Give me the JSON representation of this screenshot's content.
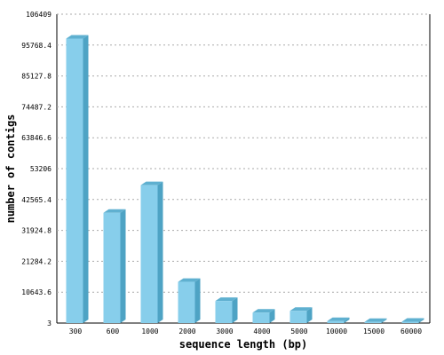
{
  "chart_data": {
    "type": "bar",
    "title": "",
    "xlabel": "sequence length (bp)",
    "ylabel": "number of contigs",
    "categories": [
      "300",
      "600",
      "1000",
      "2000",
      "3000",
      "4000",
      "5000",
      "10000",
      "15000",
      "60000"
    ],
    "values": [
      98000,
      38000,
      47500,
      14200,
      7600,
      3600,
      4200,
      700,
      400,
      450
    ],
    "yticks": [
      "3",
      "10643.6",
      "21284.2",
      "31924.8",
      "42565.4",
      "53206",
      "63846.6",
      "74487.2",
      "85127.8",
      "95768.4",
      "106409"
    ],
    "ylim": [
      3,
      106409
    ],
    "grid": true,
    "bar_color": "#87ceeb",
    "bar_side_color": "#4ea3c4",
    "bar_top_color": "#5fb0d0",
    "grid_color": "#aaaaaa"
  }
}
